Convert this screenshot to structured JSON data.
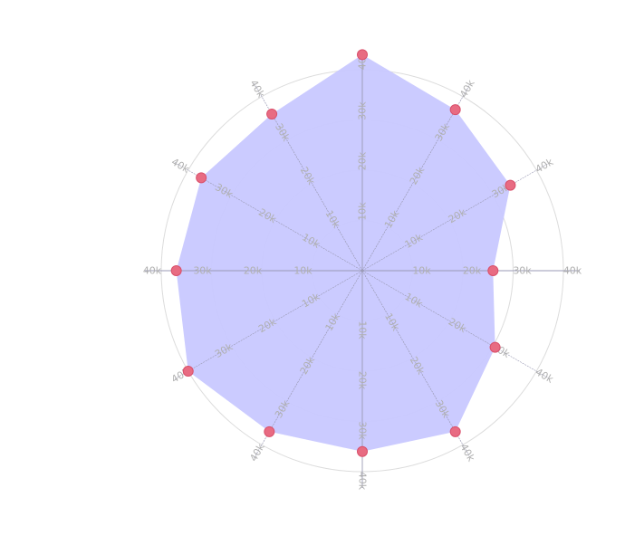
{
  "chart_data": {
    "type": "radar",
    "title": "",
    "axes_count": 12,
    "tick_values": [
      10000,
      20000,
      30000,
      40000
    ],
    "tick_labels": [
      "10k",
      "20k",
      "30k",
      "40k"
    ],
    "range": [
      0,
      40000
    ],
    "grid": true,
    "legend": "none",
    "series": [
      {
        "values": [
          43000,
          37000,
          34000,
          26000,
          30500,
          37000,
          36000,
          37000,
          40000,
          37000,
          37000,
          36000
        ],
        "fill_color": "#c8c8ff",
        "point_color": "#e86b82",
        "point_stroke": "#d94f6a"
      }
    ],
    "colors": {
      "grid_circle": "#dcdcdc",
      "spoke": "#9a9ab4",
      "tick_label": "#b0b0b0"
    }
  }
}
